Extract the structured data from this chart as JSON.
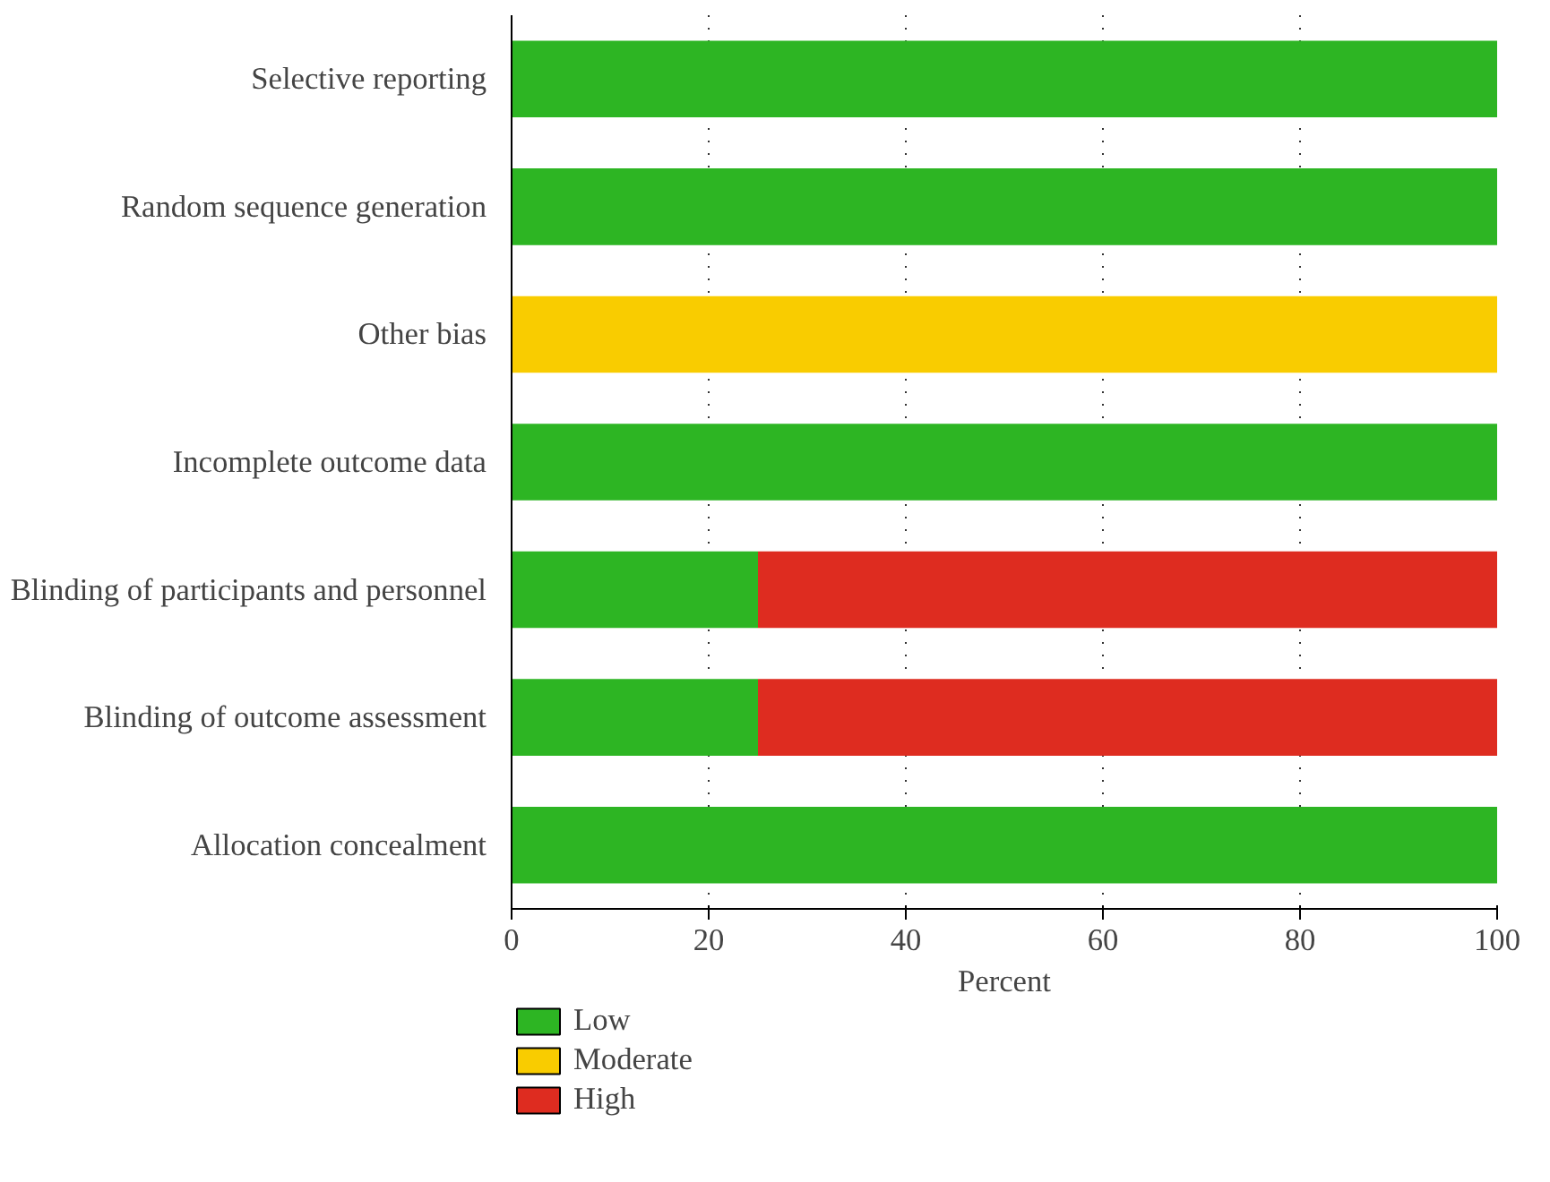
{
  "chart_data": {
    "type": "bar",
    "orientation": "horizontal",
    "stacked": true,
    "xlabel": "Percent",
    "categories": [
      "Selective reporting",
      "Random sequence generation",
      "Other bias",
      "Incomplete outcome data",
      "Blinding of participants and personnel",
      "Blinding of outcome assessment",
      "Allocation concealment"
    ],
    "series": [
      {
        "name": "Low",
        "color": "#2db523",
        "values": [
          100,
          100,
          0,
          100,
          25,
          25,
          100
        ]
      },
      {
        "name": "Moderate",
        "color": "#f9cc00",
        "values": [
          0,
          0,
          100,
          0,
          0,
          0,
          0
        ]
      },
      {
        "name": "High",
        "color": "#de2c20",
        "values": [
          0,
          0,
          0,
          0,
          75,
          75,
          0
        ]
      }
    ],
    "xlim": [
      0,
      100
    ],
    "xticks": [
      0,
      20,
      40,
      60,
      80,
      100
    ],
    "grid": "x",
    "legend": "bottom"
  }
}
